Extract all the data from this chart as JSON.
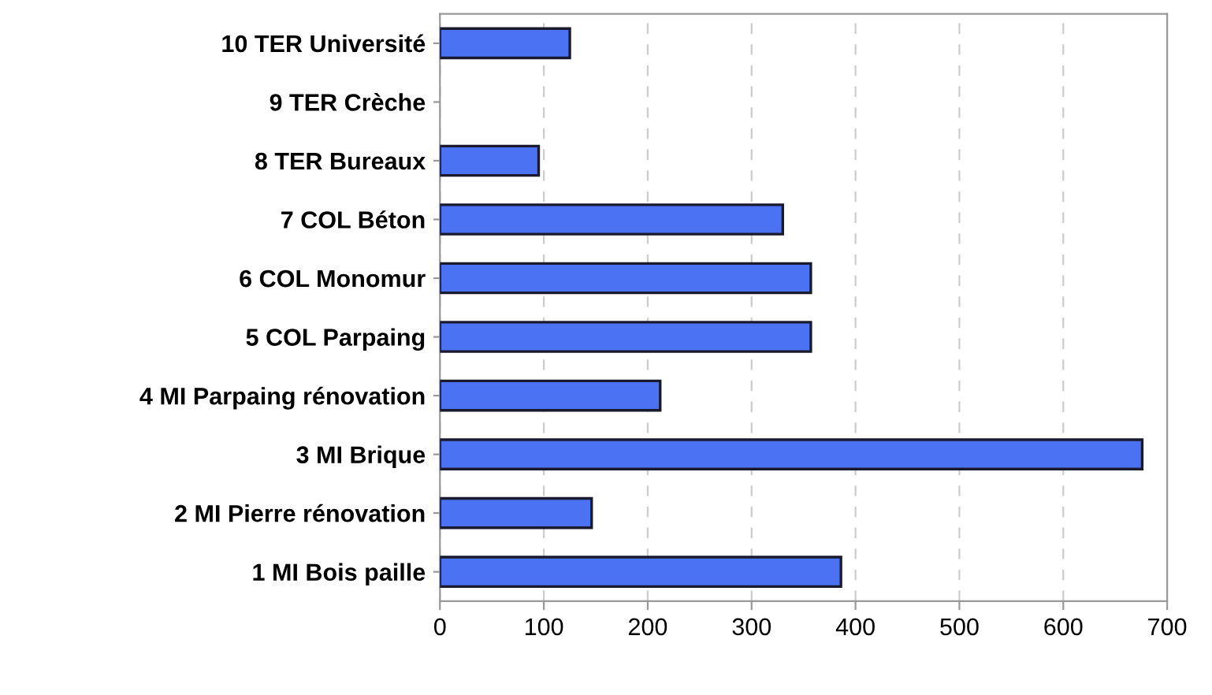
{
  "chart_data": {
    "type": "bar",
    "orientation": "horizontal",
    "categories": [
      "10 TER Université",
      "9 TER Crèche",
      "8 TER Bureaux",
      "7 COL Béton",
      "6 COL Monomur",
      "5 COL Parpaing",
      "4 MI Parpaing rénovation",
      "3 MI Brique",
      "2 MI Pierre rénovation",
      "1 MI Bois paille"
    ],
    "values": [
      125,
      null,
      95,
      330,
      357,
      357,
      212,
      676,
      146,
      386
    ],
    "color": "#4a72f2",
    "xlim": [
      0,
      700
    ],
    "xticks": [
      0,
      100,
      200,
      300,
      400,
      500,
      600,
      700
    ],
    "grid": "x"
  }
}
